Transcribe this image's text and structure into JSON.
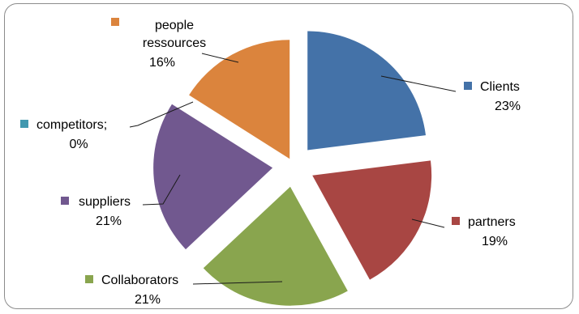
{
  "chart_data": {
    "type": "pie",
    "exploded": true,
    "legend": "inline-callout-labels",
    "slices": [
      {
        "label": "Clients",
        "value_label": "23%",
        "value": 23,
        "color": "#4472A8"
      },
      {
        "label": "partners",
        "value_label": "19%",
        "value": 19,
        "color": "#A84643"
      },
      {
        "label": "Collaborators",
        "value_label": "21%",
        "value": 21,
        "color": "#89A54E"
      },
      {
        "label": "suppliers",
        "value_label": "21%",
        "value": 21,
        "color": "#71588F"
      },
      {
        "label": "competitors;",
        "value_label": "0%",
        "value": 0,
        "color": "#4198AF"
      },
      {
        "label": "people\nressources",
        "value_label": "16%",
        "value": 16,
        "color": "#DB843D"
      }
    ]
  }
}
